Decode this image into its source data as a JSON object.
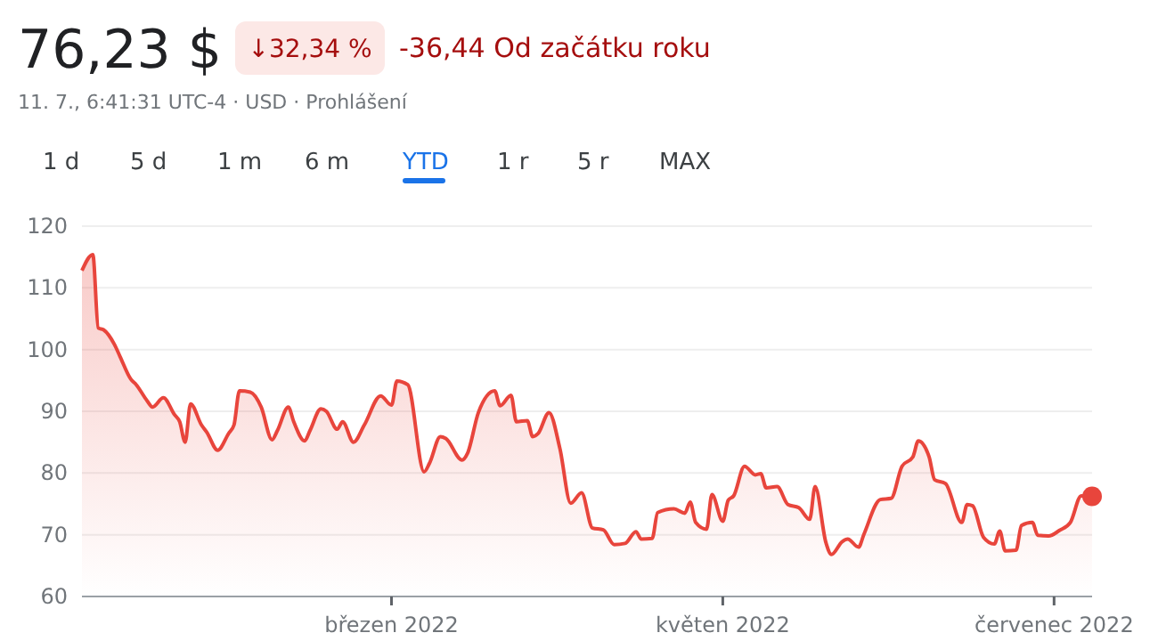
{
  "chart_data": {
    "type": "area",
    "title": "76,23 $",
    "subtitle": "11. 7., 6:41:31 UTC-4 · USD · Prohlášení",
    "annotations": [
      "↓32,34 %",
      "-36,44 Od začátku roku",
      "1 d",
      "5 d",
      "1 m",
      "6 m",
      "YTD",
      "1 r",
      "5 r",
      "MAX"
    ],
    "xlim": [
      "2022-01-03",
      "2022-07-08"
    ],
    "xticks": [
      {
        "value": "2022-03-01",
        "label": "březen 2022"
      },
      {
        "value": "2022-05-01",
        "label": "květen 2022"
      },
      {
        "value": "2022-07-01",
        "label": "červenec 2022"
      }
    ],
    "ylim": [
      60,
      120
    ],
    "yticks": [
      60,
      70,
      80,
      90,
      100,
      110,
      120
    ],
    "grid": "y",
    "marker": "none",
    "line_style": "solid",
    "series": [
      {
        "color": "#e8453c",
        "x": [
          "2022-01-03",
          "2022-01-05",
          "2022-01-06",
          "2022-01-07",
          "2022-01-09",
          "2022-01-10",
          "2022-01-12",
          "2022-01-13",
          "2022-01-15",
          "2022-01-16",
          "2022-01-18",
          "2022-01-20",
          "2022-01-21",
          "2022-01-22",
          "2022-01-23",
          "2022-01-25",
          "2022-01-26",
          "2022-01-28",
          "2022-01-30",
          "2022-01-31",
          "2022-02-01",
          "2022-02-03",
          "2022-02-05",
          "2022-02-07",
          "2022-02-08",
          "2022-02-10",
          "2022-02-11",
          "2022-02-13",
          "2022-02-14",
          "2022-02-16",
          "2022-02-17",
          "2022-02-19",
          "2022-02-20",
          "2022-02-22",
          "2022-02-24",
          "2022-02-27",
          "2022-03-01",
          "2022-03-02",
          "2022-03-04",
          "2022-03-07",
          "2022-03-08",
          "2022-03-10",
          "2022-03-11",
          "2022-03-14",
          "2022-03-15",
          "2022-03-17",
          "2022-03-20",
          "2022-03-21",
          "2022-03-23",
          "2022-03-24",
          "2022-03-26",
          "2022-03-27",
          "2022-03-28",
          "2022-03-30",
          "2022-04-01",
          "2022-04-03",
          "2022-04-05",
          "2022-04-07",
          "2022-04-09",
          "2022-04-11",
          "2022-04-13",
          "2022-04-15",
          "2022-04-16",
          "2022-04-18",
          "2022-04-19",
          "2022-04-22",
          "2022-04-24",
          "2022-04-25",
          "2022-04-26",
          "2022-04-28",
          "2022-04-29",
          "2022-05-01",
          "2022-05-02",
          "2022-05-03",
          "2022-05-05",
          "2022-05-07",
          "2022-05-08",
          "2022-05-09",
          "2022-05-11",
          "2022-05-13",
          "2022-05-15",
          "2022-05-17",
          "2022-05-18",
          "2022-05-20",
          "2022-05-21",
          "2022-05-23",
          "2022-05-24",
          "2022-05-26",
          "2022-05-27",
          "2022-05-30",
          "2022-06-01",
          "2022-06-03",
          "2022-06-05",
          "2022-06-06",
          "2022-06-08",
          "2022-06-09",
          "2022-06-11",
          "2022-06-14",
          "2022-06-15",
          "2022-06-16",
          "2022-06-18",
          "2022-06-20",
          "2022-06-21",
          "2022-06-22",
          "2022-06-24",
          "2022-06-25",
          "2022-06-27",
          "2022-06-28",
          "2022-06-30",
          "2022-07-02",
          "2022-07-04",
          "2022-07-06",
          "2022-07-08"
        ],
        "values": [
          112.8,
          115.4,
          103.5,
          103.2,
          100.8,
          98.9,
          95.2,
          94.3,
          91.7,
          90.7,
          92.2,
          89.5,
          88.3,
          85.0,
          91.2,
          87.8,
          86.6,
          83.7,
          86.4,
          87.8,
          93.3,
          93.1,
          90.7,
          85.4,
          86.9,
          90.7,
          88.3,
          85.2,
          86.9,
          90.4,
          90.0,
          87.1,
          88.3,
          85.0,
          87.8,
          92.5,
          91.0,
          94.9,
          94.3,
          80.2,
          81.6,
          85.9,
          85.6,
          82.1,
          83.2,
          89.8,
          93.3,
          90.9,
          92.6,
          88.3,
          88.5,
          85.9,
          86.4,
          89.8,
          84.0,
          75.1,
          76.8,
          71.1,
          70.8,
          68.4,
          68.6,
          70.5,
          69.3,
          69.4,
          73.6,
          74.2,
          73.5,
          75.3,
          72.0,
          70.9,
          76.5,
          72.2,
          75.6,
          76.3,
          81.1,
          79.7,
          79.9,
          77.6,
          77.8,
          74.9,
          74.4,
          72.5,
          77.8,
          68.7,
          66.8,
          68.9,
          69.3,
          68.0,
          70.1,
          75.7,
          75.9,
          81.1,
          82.6,
          85.2,
          82.6,
          78.9,
          78.3,
          72.0,
          74.9,
          74.7,
          69.6,
          68.5,
          70.6,
          67.4,
          67.5,
          71.5,
          72.0,
          69.9,
          69.8,
          70.7,
          72.0,
          76.3,
          76.23
        ]
      },
      {
        "type": "scatter",
        "marker": "circle",
        "color": "#e8453c",
        "x": [
          "2022-07-08"
        ],
        "values": [
          76.23
        ]
      }
    ]
  }
}
